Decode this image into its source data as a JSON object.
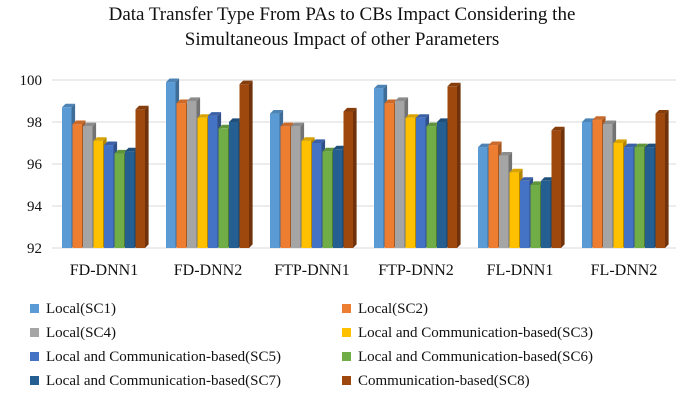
{
  "chart_data": {
    "type": "bar",
    "title_lines": [
      "Data Transfer Type From PAs to CBs Impact Considering the",
      "Simultaneous Impact of other Parameters"
    ],
    "categories": [
      "FD-DNN1",
      "FD-DNN2",
      "FTP-DNN1",
      "FTP-DNN2",
      "FL-DNN1",
      "FL-DNN2"
    ],
    "ylim": [
      92,
      100
    ],
    "yticks": [
      92,
      94,
      96,
      98,
      100
    ],
    "xlabel": "",
    "ylabel": "",
    "grid": true,
    "legend_position": "bottom",
    "series": [
      {
        "name": "Local(SC1)",
        "color": "#5B9BD5",
        "values": [
          98.7,
          99.9,
          98.4,
          99.6,
          96.8,
          98.0
        ]
      },
      {
        "name": "Local(SC2)",
        "color": "#ED7D31",
        "values": [
          97.9,
          98.9,
          97.8,
          98.9,
          96.9,
          98.1
        ]
      },
      {
        "name": "Local(SC4)",
        "color": "#A5A5A5",
        "values": [
          97.8,
          99.0,
          97.8,
          99.0,
          96.4,
          97.9
        ]
      },
      {
        "name": "Local and Communication-based(SC3)",
        "color": "#FFC000",
        "values": [
          97.1,
          98.2,
          97.1,
          98.2,
          95.6,
          97.0
        ]
      },
      {
        "name": "Local and Communication-based(SC5)",
        "color": "#4472C4",
        "values": [
          96.9,
          98.3,
          97.0,
          98.2,
          95.2,
          96.8
        ]
      },
      {
        "name": "Local and Communication-based(SC6)",
        "color": "#70AD47",
        "values": [
          96.5,
          97.7,
          96.6,
          97.8,
          95.0,
          96.8
        ]
      },
      {
        "name": "Local and Communication-based(SC7)",
        "color": "#255E91",
        "values": [
          96.6,
          98.0,
          96.7,
          98.0,
          95.2,
          96.8
        ]
      },
      {
        "name": "Communication-based(SC8)",
        "color": "#9E480E",
        "values": [
          98.6,
          99.8,
          98.5,
          99.7,
          97.6,
          98.4
        ]
      }
    ]
  }
}
